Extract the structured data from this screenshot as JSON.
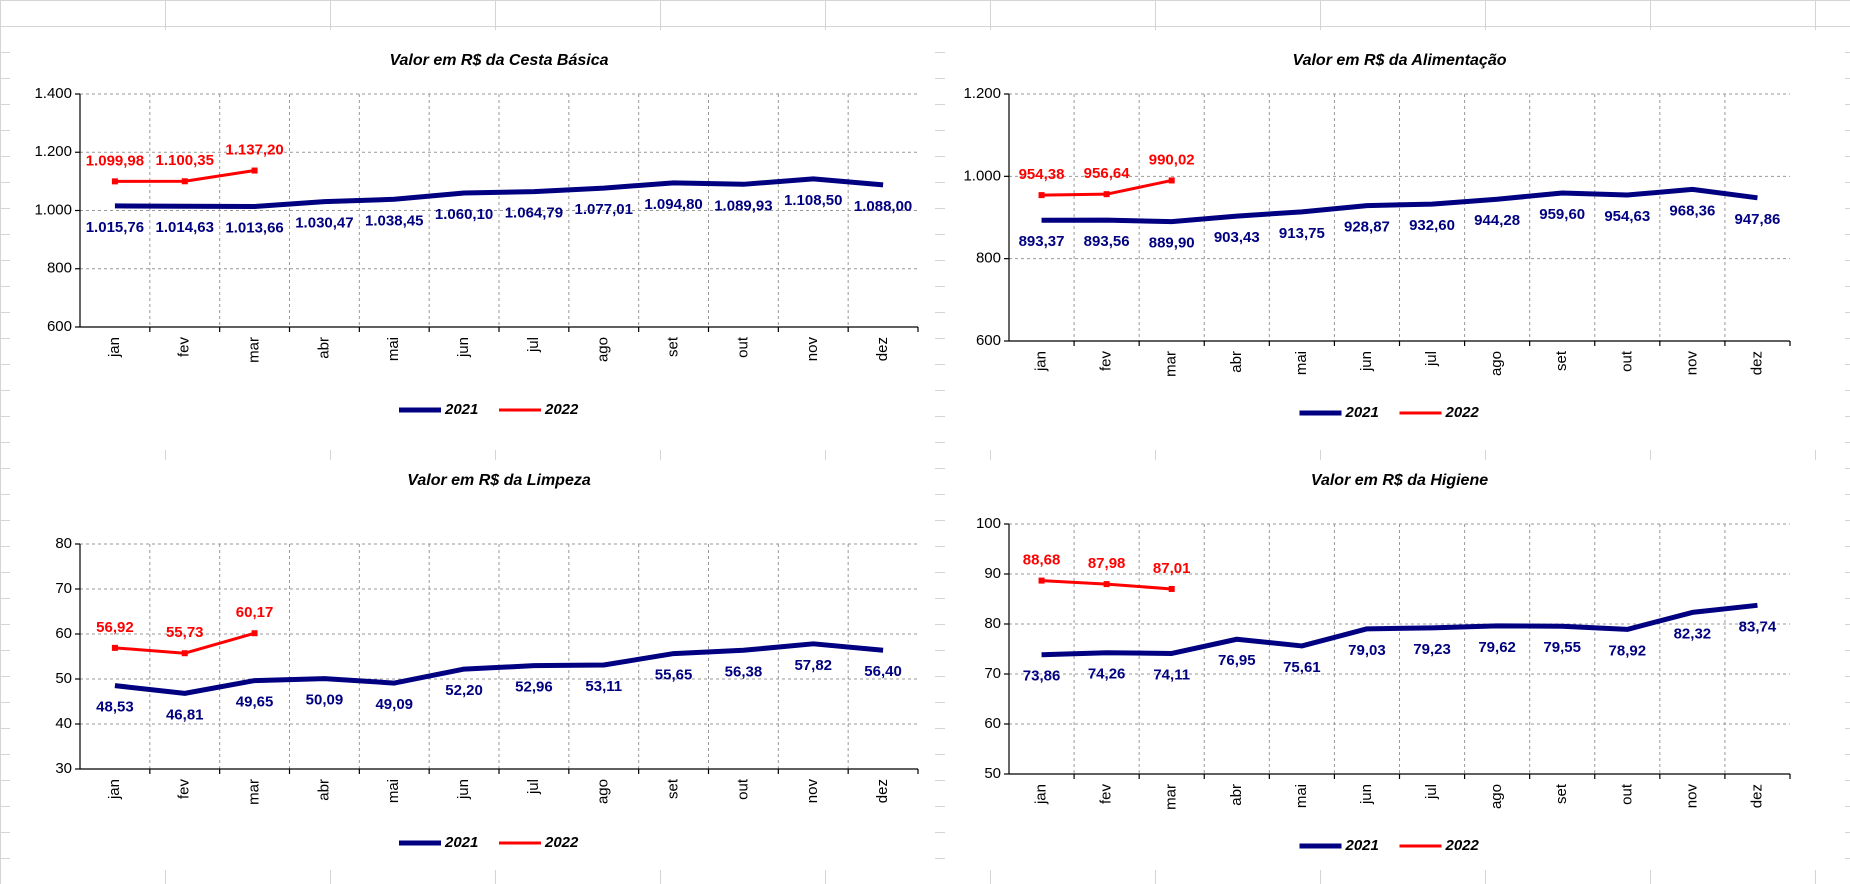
{
  "chart_data": [
    {
      "type": "line",
      "title": "Valor em R$ da Cesta Básica",
      "categories": [
        "jan",
        "fev",
        "mar",
        "abr",
        "mai",
        "jun",
        "jul",
        "ago",
        "set",
        "out",
        "nov",
        "dez"
      ],
      "ylim": [
        600,
        1400
      ],
      "yticks": [
        600,
        800,
        {
          "value": 1000,
          "label": "1.000"
        },
        {
          "value": 1200,
          "label": "1.200"
        },
        {
          "value": 1400,
          "label": "1.400"
        }
      ],
      "grid": true,
      "legend": "bottom",
      "series": [
        {
          "name": "2021",
          "color": "#000080",
          "values": [
            1015.76,
            1014.63,
            1013.66,
            1030.47,
            1038.45,
            1060.1,
            1064.79,
            1077.01,
            1094.8,
            1089.93,
            1108.5,
            1088.0
          ],
          "value_labels": [
            "1.015,76",
            "1.014,63",
            "1.013,66",
            "1.030,47",
            "1.038,45",
            "1.060,10",
            "1.064,79",
            "1.077,01",
            "1.094,80",
            "1.089,93",
            "1.108,50",
            "1.088,00"
          ]
        },
        {
          "name": "2022",
          "color": "#ff0000",
          "values": [
            1099.98,
            1100.35,
            1137.2,
            null,
            null,
            null,
            null,
            null,
            null,
            null,
            null,
            null
          ],
          "value_labels": [
            "1.099,98",
            "1.100,35",
            "1.137,20",
            null,
            null,
            null,
            null,
            null,
            null,
            null,
            null,
            null
          ]
        }
      ]
    },
    {
      "type": "line",
      "title": "Valor em R$ da Alimentação",
      "categories": [
        "jan",
        "fev",
        "mar",
        "abr",
        "mai",
        "jun",
        "jul",
        "ago",
        "set",
        "out",
        "nov",
        "dez"
      ],
      "ylim": [
        600,
        1200
      ],
      "yticks": [
        600,
        800,
        {
          "value": 1000,
          "label": "1.000"
        },
        {
          "value": 1200,
          "label": "1.200"
        }
      ],
      "grid": true,
      "legend": "bottom",
      "series": [
        {
          "name": "2021",
          "color": "#000080",
          "values": [
            893.37,
            893.56,
            889.9,
            903.43,
            913.75,
            928.87,
            932.6,
            944.28,
            959.6,
            954.63,
            968.36,
            947.86
          ],
          "value_labels": [
            "893,37",
            "893,56",
            "889,90",
            "903,43",
            "913,75",
            "928,87",
            "932,60",
            "944,28",
            "959,60",
            "954,63",
            "968,36",
            "947,86"
          ]
        },
        {
          "name": "2022",
          "color": "#ff0000",
          "values": [
            954.38,
            956.64,
            990.02,
            null,
            null,
            null,
            null,
            null,
            null,
            null,
            null,
            null
          ],
          "value_labels": [
            "954,38",
            "956,64",
            "990,02",
            null,
            null,
            null,
            null,
            null,
            null,
            null,
            null,
            null
          ]
        }
      ]
    },
    {
      "type": "line",
      "title": "Valor em R$ da Limpeza",
      "categories": [
        "jan",
        "fev",
        "mar",
        "abr",
        "mai",
        "jun",
        "jul",
        "ago",
        "set",
        "out",
        "nov",
        "dez"
      ],
      "ylim": [
        30,
        80
      ],
      "yticks": [
        30,
        40,
        50,
        60,
        70,
        80
      ],
      "grid": true,
      "legend": "bottom",
      "series": [
        {
          "name": "2021",
          "color": "#000080",
          "values": [
            48.53,
            46.81,
            49.65,
            50.09,
            49.09,
            52.2,
            52.96,
            53.11,
            55.65,
            56.38,
            57.82,
            56.4
          ],
          "value_labels": [
            "48,53",
            "46,81",
            "49,65",
            "50,09",
            "49,09",
            "52,20",
            "52,96",
            "53,11",
            "55,65",
            "56,38",
            "57,82",
            "56,40"
          ]
        },
        {
          "name": "2022",
          "color": "#ff0000",
          "values": [
            56.92,
            55.73,
            60.17,
            null,
            null,
            null,
            null,
            null,
            null,
            null,
            null,
            null
          ],
          "value_labels": [
            "56,92",
            "55,73",
            "60,17",
            null,
            null,
            null,
            null,
            null,
            null,
            null,
            null,
            null
          ]
        }
      ]
    },
    {
      "type": "line",
      "title": "Valor em R$ da Higiene",
      "categories": [
        "jan",
        "fev",
        "mar",
        "abr",
        "mai",
        "jun",
        "jul",
        "ago",
        "set",
        "out",
        "nov",
        "dez"
      ],
      "ylim": [
        50,
        100
      ],
      "yticks": [
        50,
        60,
        70,
        80,
        90,
        100
      ],
      "grid": true,
      "legend": "bottom",
      "series": [
        {
          "name": "2021",
          "color": "#000080",
          "values": [
            73.86,
            74.26,
            74.11,
            76.95,
            75.61,
            79.03,
            79.23,
            79.62,
            79.55,
            78.92,
            82.32,
            83.74
          ],
          "value_labels": [
            "73,86",
            "74,26",
            "74,11",
            "76,95",
            "75,61",
            "79,03",
            "79,23",
            "79,62",
            "79,55",
            "78,92",
            "82,32",
            "83,74"
          ]
        },
        {
          "name": "2022",
          "color": "#ff0000",
          "values": [
            88.68,
            87.98,
            87.01,
            null,
            null,
            null,
            null,
            null,
            null,
            null,
            null,
            null
          ],
          "value_labels": [
            "88,68",
            "87,98",
            "87,01",
            null,
            null,
            null,
            null,
            null,
            null,
            null,
            null,
            null
          ]
        }
      ]
    }
  ]
}
